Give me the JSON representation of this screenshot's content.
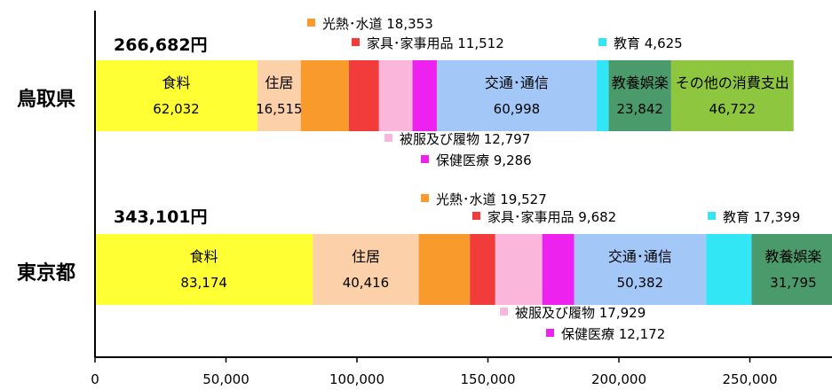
{
  "chart_data": {
    "type": "bar",
    "orientation": "horizontal",
    "stacked": true,
    "xlim": [
      0,
      280000
    ],
    "xticks": [
      0,
      50000,
      100000,
      150000,
      200000,
      250000
    ],
    "xtick_labels": [
      "0",
      "50,000",
      "100,000",
      "150,000",
      "200,000",
      "250,000"
    ],
    "grid": false,
    "categories": [
      "鳥取県",
      "東京都"
    ],
    "totals": [
      "266,682円",
      "343,101円"
    ],
    "series": [
      {
        "name": "食料",
        "values": [
          62032,
          83174
        ],
        "value_labels": [
          "62,032",
          "83,174"
        ],
        "color": "#ffff33"
      },
      {
        "name": "住居",
        "values": [
          16515,
          40416
        ],
        "value_labels": [
          "16,515",
          "40,416"
        ],
        "color": "#fcd0a8"
      },
      {
        "name": "光熱･水道",
        "values": [
          18353,
          19527
        ],
        "value_labels": [
          "18,353",
          "19,527"
        ],
        "color": "#f99a2c"
      },
      {
        "name": "家具･家事用品",
        "values": [
          11512,
          9682
        ],
        "value_labels": [
          "11,512",
          "9,682"
        ],
        "color": "#f23c3c"
      },
      {
        "name": "被服及び履物",
        "values": [
          12797,
          17929
        ],
        "value_labels": [
          "12,797",
          "17,929"
        ],
        "color": "#fbb6dc"
      },
      {
        "name": "保健医療",
        "values": [
          9286,
          12172
        ],
        "value_labels": [
          "9,286",
          "12,172"
        ],
        "color": "#ee22ee"
      },
      {
        "name": "交通･通信",
        "values": [
          60998,
          50382
        ],
        "value_labels": [
          "60,998",
          "50,382"
        ],
        "color": "#a3c8f8"
      },
      {
        "name": "教育",
        "values": [
          4625,
          17399
        ],
        "value_labels": [
          "4,625",
          "17,399"
        ],
        "color": "#33e6f6"
      },
      {
        "name": "教養娯楽",
        "values": [
          23842,
          31795
        ],
        "value_labels": [
          "23,842",
          "31,795"
        ],
        "color": "#4a9a6c"
      },
      {
        "name": "その他の消費支出",
        "values": [
          46722,
          null
        ],
        "value_labels": [
          "46,722",
          ""
        ],
        "color": "#8ec63f"
      }
    ],
    "inside_labels": [
      [
        "食料",
        "住居",
        "交通･通信",
        "教養娯楽",
        "その他の消費支出"
      ],
      [
        "食料",
        "住居",
        "交通･通信",
        "教養娯楽"
      ]
    ],
    "callout_labels": [
      [
        "光熱･水道",
        "家具･家事用品",
        "教育",
        "被服及び履物",
        "保健医療"
      ],
      [
        "光熱･水道",
        "家具･家事用品",
        "教育",
        "被服及び履物",
        "保健医療"
      ]
    ]
  }
}
